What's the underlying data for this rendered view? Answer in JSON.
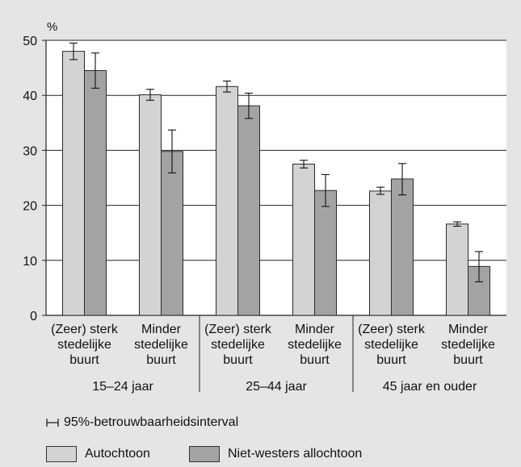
{
  "chart_data": {
    "type": "bar",
    "ylabel": "%",
    "ylim": [
      0,
      50
    ],
    "yticks": [
      "0",
      "10",
      "20",
      "30",
      "40",
      "50"
    ],
    "grid": true,
    "groups": [
      {
        "label": "15–24 jaar",
        "categories": [
          {
            "label": [
              "(Zeer) sterk",
              "stedelijke",
              "buurt"
            ],
            "values": [
              48.0,
              44.5
            ],
            "ci": [
              [
                46.5,
                49.5
              ],
              [
                41.3,
                47.7
              ]
            ]
          },
          {
            "label": [
              "Minder",
              "stedelijke",
              "buurt"
            ],
            "values": [
              40.1,
              29.8
            ],
            "ci": [
              [
                39.1,
                41.1
              ],
              [
                25.9,
                33.7
              ]
            ]
          }
        ]
      },
      {
        "label": "25–44 jaar",
        "categories": [
          {
            "label": [
              "(Zeer) sterk",
              "stedelijke",
              "buurt"
            ],
            "values": [
              41.6,
              38.1
            ],
            "ci": [
              [
                40.6,
                42.6
              ],
              [
                35.8,
                40.4
              ]
            ]
          },
          {
            "label": [
              "Minder",
              "stedelijke",
              "buurt"
            ],
            "values": [
              27.5,
              22.7
            ],
            "ci": [
              [
                26.8,
                28.2
              ],
              [
                19.8,
                25.6
              ]
            ]
          }
        ]
      },
      {
        "label": "45 jaar en ouder",
        "categories": [
          {
            "label": [
              "(Zeer) sterk",
              "stedelijke",
              "buurt"
            ],
            "values": [
              22.6,
              24.8
            ],
            "ci": [
              [
                22.0,
                23.3
              ],
              [
                21.9,
                27.6
              ]
            ]
          },
          {
            "label": [
              "Minder",
              "stedelijke",
              "buurt"
            ],
            "values": [
              16.6,
              8.9
            ],
            "ci": [
              [
                16.2,
                17.0
              ],
              [
                6.1,
                11.6
              ]
            ]
          }
        ]
      }
    ],
    "series": [
      {
        "name": "Autochtoon",
        "color": "#d3d3d3"
      },
      {
        "name": "Niet-westers allochtoon",
        "color": "#a3a3a3"
      }
    ],
    "ci_legend": "95%-betrouwbaarheidsinterval"
  }
}
